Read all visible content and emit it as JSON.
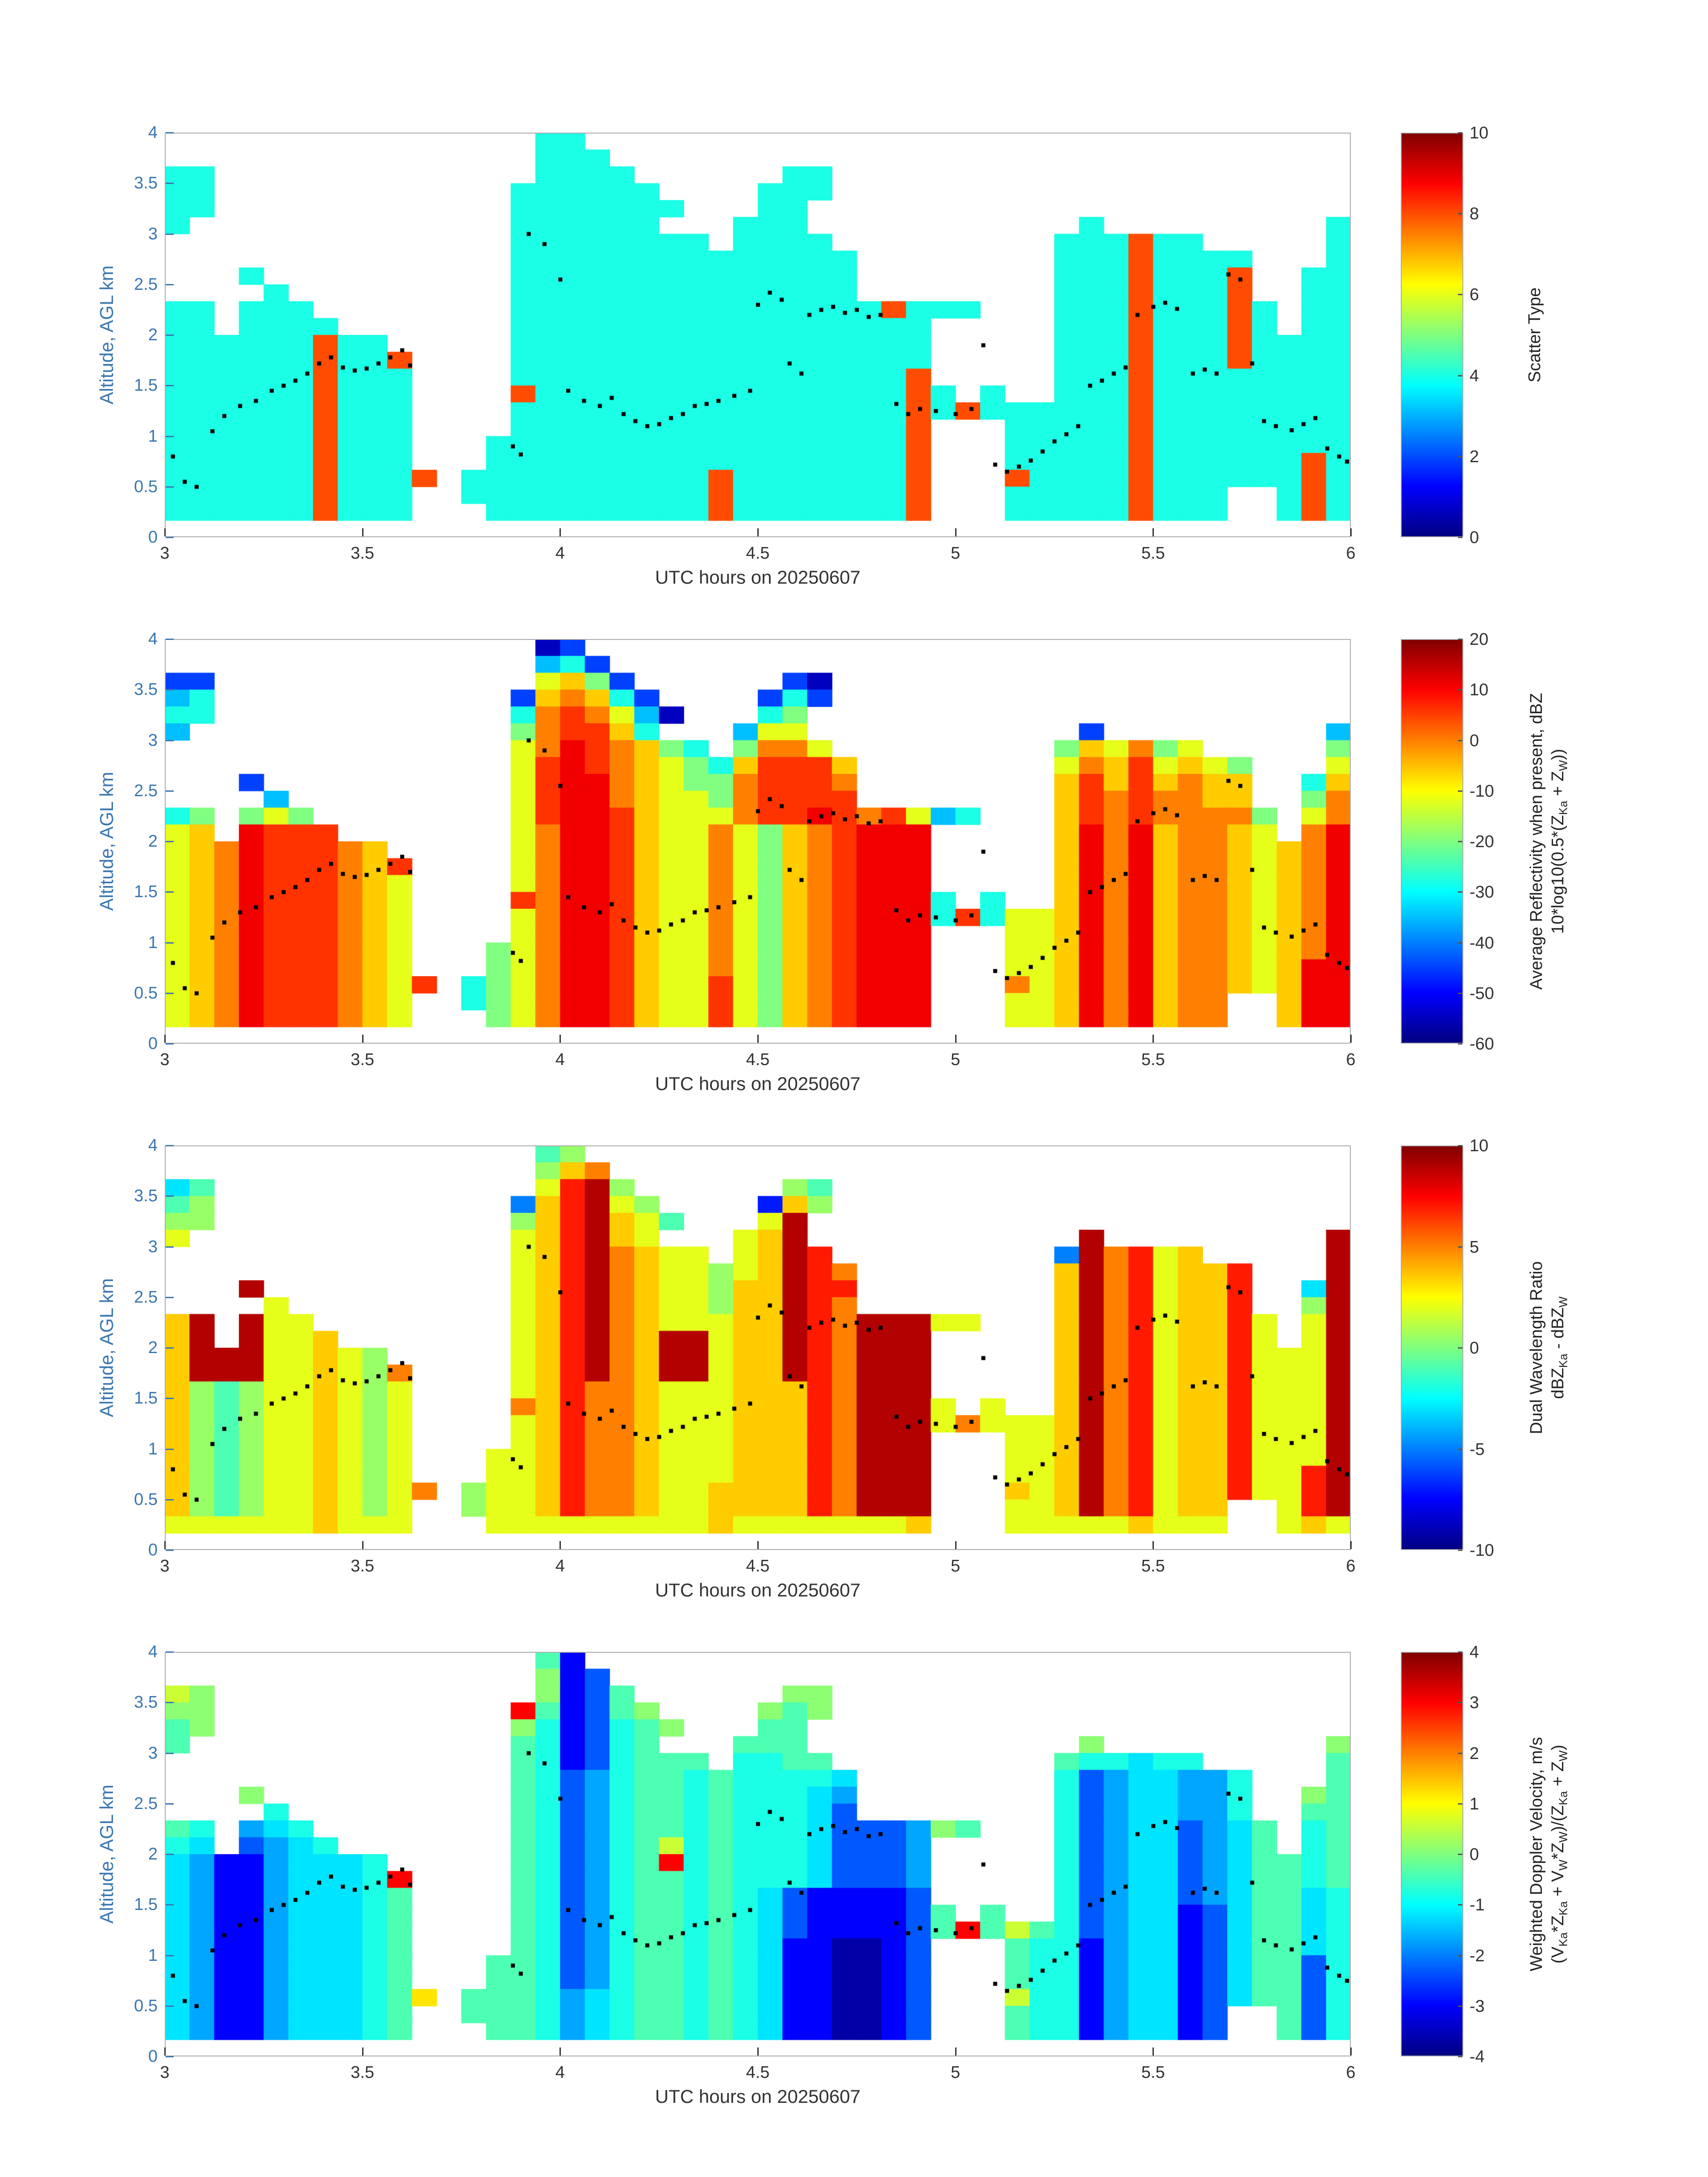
{
  "chart_data": {
    "type": "heatmap",
    "description": "Four stacked time-height radar panels sharing the same time axis",
    "xlabel": "UTC hours on 20250607",
    "ylabel": "Altitude, AGL km",
    "x_range": [
      3,
      6
    ],
    "y_range": [
      0,
      4
    ],
    "x_ticks": [
      3,
      3.5,
      4,
      4.5,
      5,
      5.5,
      6
    ],
    "x_tick_labels": [
      "3",
      "3.5",
      "4",
      "4.5",
      "5",
      "5.5",
      "6"
    ],
    "y_ticks": [
      0,
      0.5,
      1,
      1.5,
      2,
      2.5,
      3,
      3.5,
      4
    ],
    "y_tick_labels": [
      "0",
      "0.5",
      "1",
      "1.5",
      "2",
      "2.5",
      "3",
      "3.5",
      "4"
    ],
    "grid_cols": 48,
    "grid_rows": 24,
    "colormap": "jet",
    "style": {
      "y_axis_color": "#3a76b0",
      "x_axis_color": "#333333",
      "frame_color": "#ababab",
      "dot_color": "#000000",
      "background": "#ffffff"
    },
    "dots_note": "black overlay dots, [utc_hour, altitude_km]",
    "dots": [
      [
        3.02,
        0.8
      ],
      [
        3.05,
        0.55
      ],
      [
        3.08,
        0.5
      ],
      [
        3.12,
        1.05
      ],
      [
        3.15,
        1.2
      ],
      [
        3.19,
        1.3
      ],
      [
        3.23,
        1.35
      ],
      [
        3.27,
        1.45
      ],
      [
        3.3,
        1.5
      ],
      [
        3.33,
        1.55
      ],
      [
        3.36,
        1.62
      ],
      [
        3.39,
        1.72
      ],
      [
        3.42,
        1.78
      ],
      [
        3.45,
        1.68
      ],
      [
        3.48,
        1.65
      ],
      [
        3.51,
        1.67
      ],
      [
        3.54,
        1.72
      ],
      [
        3.57,
        1.78
      ],
      [
        3.6,
        1.85
      ],
      [
        3.62,
        1.7
      ],
      [
        3.88,
        0.9
      ],
      [
        3.9,
        0.82
      ],
      [
        3.92,
        3.0
      ],
      [
        3.96,
        2.9
      ],
      [
        4.0,
        2.55
      ],
      [
        4.02,
        1.45
      ],
      [
        4.06,
        1.35
      ],
      [
        4.1,
        1.3
      ],
      [
        4.13,
        1.38
      ],
      [
        4.16,
        1.22
      ],
      [
        4.19,
        1.15
      ],
      [
        4.22,
        1.1
      ],
      [
        4.25,
        1.12
      ],
      [
        4.28,
        1.18
      ],
      [
        4.31,
        1.22
      ],
      [
        4.34,
        1.3
      ],
      [
        4.37,
        1.32
      ],
      [
        4.4,
        1.35
      ],
      [
        4.44,
        1.4
      ],
      [
        4.48,
        1.45
      ],
      [
        4.5,
        2.3
      ],
      [
        4.53,
        2.42
      ],
      [
        4.56,
        2.35
      ],
      [
        4.58,
        1.72
      ],
      [
        4.61,
        1.62
      ],
      [
        4.63,
        2.2
      ],
      [
        4.66,
        2.25
      ],
      [
        4.69,
        2.28
      ],
      [
        4.72,
        2.22
      ],
      [
        4.75,
        2.25
      ],
      [
        4.78,
        2.18
      ],
      [
        4.81,
        2.2
      ],
      [
        4.85,
        1.32
      ],
      [
        4.88,
        1.22
      ],
      [
        4.91,
        1.27
      ],
      [
        4.95,
        1.25
      ],
      [
        5.0,
        1.22
      ],
      [
        5.04,
        1.27
      ],
      [
        5.07,
        1.9
      ],
      [
        5.1,
        0.72
      ],
      [
        5.13,
        0.65
      ],
      [
        5.16,
        0.7
      ],
      [
        5.19,
        0.76
      ],
      [
        5.22,
        0.85
      ],
      [
        5.25,
        0.95
      ],
      [
        5.28,
        1.02
      ],
      [
        5.31,
        1.1
      ],
      [
        5.34,
        1.5
      ],
      [
        5.37,
        1.55
      ],
      [
        5.4,
        1.62
      ],
      [
        5.43,
        1.68
      ],
      [
        5.46,
        2.2
      ],
      [
        5.5,
        2.28
      ],
      [
        5.53,
        2.32
      ],
      [
        5.56,
        2.26
      ],
      [
        5.6,
        1.62
      ],
      [
        5.63,
        1.66
      ],
      [
        5.66,
        1.62
      ],
      [
        5.69,
        2.6
      ],
      [
        5.72,
        2.55
      ],
      [
        5.75,
        1.72
      ],
      [
        5.78,
        1.15
      ],
      [
        5.81,
        1.1
      ],
      [
        5.85,
        1.06
      ],
      [
        5.88,
        1.12
      ],
      [
        5.91,
        1.18
      ],
      [
        5.94,
        0.88
      ],
      [
        5.97,
        0.8
      ],
      [
        5.99,
        0.75
      ]
    ],
    "panels": [
      {
        "id": "scatter-type",
        "colorbar_label_lines": [
          "Scatter Type"
        ],
        "colorbar_ticks": [
          10,
          8,
          6,
          4,
          2,
          0
        ],
        "vmin": 0,
        "vmax": 10,
        "palette": {
          "c": 4,
          "r": 8
        },
        "grid": [
          "...............cc...............................",
          "...............ccc..............................",
          "cc.............cccc......cc.....................",
          "cc............cccccc....ccc.....................",
          "cc............ccccccc...cc......................",
          "c.............cccccc...ccc...........c.........c",
          "..............cccccccc.cccc.........cccrcc.....c",
          "..............cccccccccccccc........cccrcccc...c",
          "...c..........cccccccccccccc........cccrcccr..cc",
          "....c.........cccccccccccccc........cccrcccr..cc",
          "cc.ccc........cccccccccccccccrccc...cccrcccrc.cc",
          "cc.cccc.......ccccccccccccccccc.....cccrcccrc.cc",
          "ccccccrcc.....ccccccccccccccccc.....cccrcccrcccc",
          "ccccccrccr....ccccccccccccccccc.....cccrcccrcccc",
          "ccccccrccc....ccccccccccccccccr.....cccrcccccccc",
          "ccccccrccc....rcccccccccccccccrc.c..cccrcccccccc",
          "ccccccrccc....ccccccccccccccccrcrccccccrcccccccc",
          "ccccccrccc....ccccccccccccccccr...cccccrcccccccc",
          "ccccccrccc...cccccccccccccccccr...cccccrcccccccc",
          "ccccccrccc...cccccccccccccccccr...cccccrccccccrc",
          "ccccccrcccr.ccccccccccrcccccccr...rccccrccccccrc",
          "ccccccrccc..ccccccccccrcccccccr...cccccrccc..crc",
          "ccccccrccc...cccccccccrcccccccr...cccccrccc..crc",
          "................................................"
        ]
      },
      {
        "id": "average-reflectivity",
        "colorbar_label_lines": [
          "Average Reflectivity when present, dBZ",
          "10*log10(0.5*(Z_Ka + Z_W))"
        ],
        "colorbar_ticks": [
          20,
          10,
          0,
          -10,
          -20,
          -30,
          -40,
          -50,
          -60
        ],
        "vmin": -60,
        "vmax": 20,
        "palette": {
          "0": -55,
          "1": -45,
          "2": -35,
          "3": -28,
          "4": -20,
          "5": -12,
          "6": -6,
          "7": 0,
          "8": 6,
          "9": 11,
          "a": 16
        },
        "grid": [
          "...............01...............................",
          "...............231..............................",
          "11.............5641......10.....................",
          "23............167631....131.....................",
          "33............3787520...34......................",
          "2.............478863...255...........1.........2",
          "..............57987643.4775.........465745.....4",
          "..............58987654368886........57685654...5",
          "...1..........58997654478887........68686766..36",
          "....2.........58997655478888........68787766..47",
          "34.454........5899865557889878523...687877774.57",
          "56.9888.......57998655754678999.....697967765.79",
          "567988876.....57998655754678999.....697967765679",
          "5679888768....57998655754678999.....697967765679",
          "5679888765....57998655754678999.....697967765679",
          "5679888765....879986557546789993.3..697967765679",
          "5679888765....5799865575467899938355697967765679",
          "5679888765....57998655754678999...55697967765679",
          "5679888765...457998655754678999...55697967765679",
          "5679888765...457998655754678999...55697967765699",
          "56798887658.3457998655854678999...75697967765699",
          "5679888765..3457998655854678999...556979677..699",
          "5679888765...457998655854678999...556979677..699",
          "................................................"
        ]
      },
      {
        "id": "dual-wavelength-ratio",
        "colorbar_label_lines": [
          "Dual Wavelength Ratio",
          "dBZ_Ka - dBZ_W"
        ],
        "colorbar_ticks": [
          10,
          5,
          0,
          -5,
          -10
        ],
        "vmin": -10,
        "vmax": 10,
        "palette": {
          "0": -9,
          "1": -7,
          "2": -5,
          "3": -3,
          "4": -1,
          "5": 0.5,
          "6": 2,
          "7": 3.5,
          "8": 5,
          "9": 7,
          "a": 9
        },
        "grid": [
          "...............45...............................",
          "...............578..............................",
          "34.............69a5......54.....................",
          "45............279a65....175.....................",
          "55............579a764...6a......................",
          "6.............679a76...67a...........a.........a",
          "..............679a8766.67a9.........2a8967.....a",
          "..............679a8766567a98........7a896779...a",
          "...a..........679a8766577a99........7a896779..3a",
          "....6.........679a8766577a98........7a896779..5a",
          "7a.a66........679a8766677a98aaa66...7a8967796.6a",
          "7a.a667.......679a87aa677a98aaa.....7a8967796.6a",
          "7aaa66765.....679a87aa677a98aaa.....7a896779666a",
          "7aaa667658....679a87aa677a98aaa.....7a896779666a",
          "7545667656....67988766677798aaa.....7a896779666a",
          "7545667656....87988766677798aaa6.6..7a896779666a",
          "7545667656....67988766677798aaa686667a896779666a",
          "7545667656....67988766677798aaa...667a896779666a",
          "7545667656...667988766677798aaa...667a896779666a",
          "7545667656...667988766677798aaa...667a896779669a",
          "75456676568.5667988766777798aaa...767a896779669a",
          "7545667656..5667988766777798aaa...667a89677..69a",
          "6666667666...666666666766666667...666667666..676",
          "................................................"
        ]
      },
      {
        "id": "weighted-doppler-velocity",
        "colorbar_label_lines": [
          "Weighted Doppler Velocity, m/s",
          "(V_Ka*Z_Ka + V_W*Z_W)/(Z_Ka + Z_W)"
        ],
        "colorbar_ticks": [
          4,
          3,
          2,
          1,
          0,
          -1,
          -2,
          -3,
          -4
        ],
        "vmin": -4,
        "vmax": 4,
        "palette": {
          "0": -3.7,
          "1": -3,
          "2": -2.3,
          "3": -1.7,
          "4": -1.2,
          "5": -0.8,
          "6": -0.4,
          "7": 0.1,
          "8": 0.6,
          "9": 1.2,
          "a": 2,
          "b": 3
        },
        "grid": [
          "...............61...............................",
          "...............712..............................",
          "87.............7126......77.....................",
          "77............b61267....767.....................",
          "67............7512567...66......................",
          "6.............651256...666...........7.........7",
          "..............65125666.5566.........655455.....6",
          "..............65235665655554........52344335...6",
          "...7..........65235665655543........52344335..76",
          "....5.........65235665655542........52344335..66",
          "65.345........6523566565554222376...523442346.56",
          "54.2345.......65235685655542223.....523442346.56",
          "431134445.....652356b5655542223.....523442346656",
          "431134445b....65235665655542223.....523442346656",
          "4311344456....65235665654211112.....523442346645",
          "4311344456....652356656542111126.6..523441246645",
          "4311344456....652356656542111126b686523441246645",
          "4311344456....65235665654110012...65513441246645",
          "4311344456...665235665654110012...65513441246625",
          "4311344456...665235665654110012...65513441246625",
          "43113444569.6665345665654110012...85513441246625",
          "4311344456..6665345665654110012...655134412..625",
          "4311344456...665345665654110012...655134412..625",
          "................................................"
        ]
      }
    ]
  }
}
